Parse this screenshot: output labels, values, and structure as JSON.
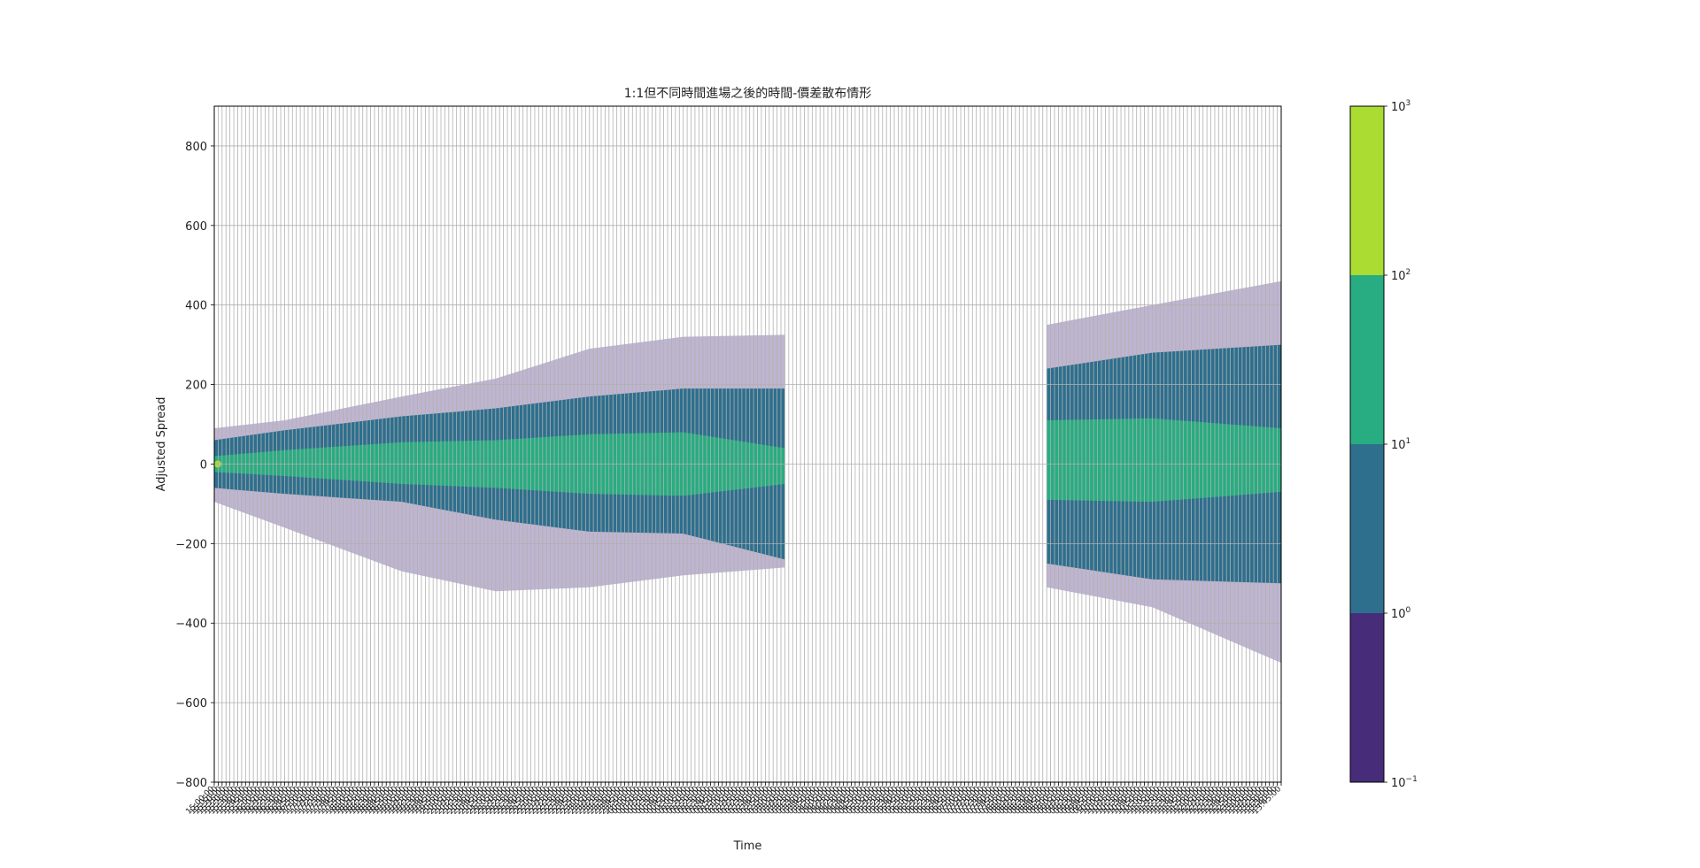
{
  "chart_data": {
    "type": "heatmap",
    "title": "1:1但不同時間進場之後的時間-價差散布情形",
    "xlabel": "Time",
    "ylabel": "Adjusted Spread",
    "ylim": [
      -800,
      900
    ],
    "yticks": [
      -800,
      -600,
      -400,
      -200,
      0,
      200,
      400,
      600,
      800
    ],
    "grid": true,
    "colorscale": "log",
    "colorbar": {
      "levels": [
        0.1,
        1,
        10,
        100,
        1000
      ],
      "tick_labels": [
        "10^-1",
        "10^0",
        "10^1",
        "10^2",
        "10^3"
      ],
      "band_colors": [
        "#472c7a",
        "#2e6f8e",
        "#27ad81",
        "#aadc32"
      ]
    },
    "time_labels": [
      "15:00:00",
      "15:05:00",
      "15:10:00",
      "15:15:00",
      "15:20:00",
      "15:25:00",
      "15:30:00",
      "15:35:00",
      "15:40:00",
      "15:45:00",
      "15:50:00",
      "15:55:00",
      "16:00:00",
      "16:05:00",
      "16:10:00",
      "16:15:00",
      "16:20:00",
      "16:25:00",
      "16:30:00",
      "16:35:00",
      "16:40:00",
      "16:45:00",
      "16:50:00",
      "16:55:00",
      "17:00:00",
      "17:05:00",
      "17:10:00",
      "17:15:00",
      "17:20:00",
      "17:25:00",
      "17:30:00",
      "17:35:00",
      "17:40:00",
      "17:45:00",
      "17:50:00",
      "17:55:00",
      "18:00:00",
      "18:05:00",
      "18:10:00",
      "18:15:00",
      "18:20:00",
      "18:25:00",
      "18:30:00",
      "18:35:00",
      "18:40:00",
      "18:45:00",
      "18:50:00",
      "18:55:00",
      "19:00:00",
      "19:05:00",
      "19:10:00",
      "19:15:00",
      "19:20:00",
      "19:25:00",
      "19:30:00",
      "19:35:00",
      "19:40:00",
      "19:45:00",
      "19:50:00",
      "19:55:00",
      "20:00:00",
      "20:05:00",
      "20:10:00",
      "20:15:00",
      "20:20:00",
      "20:25:00",
      "20:30:00",
      "20:35:00",
      "20:40:00",
      "20:45:00",
      "20:50:00",
      "20:55:00",
      "21:00:00",
      "21:05:00",
      "21:10:00",
      "21:15:00",
      "21:20:00",
      "21:25:00",
      "21:30:00",
      "21:35:00",
      "21:40:00",
      "21:45:00",
      "21:50:00",
      "21:55:00",
      "22:00:00",
      "22:05:00",
      "22:10:00",
      "22:15:00",
      "22:20:00",
      "22:25:00",
      "22:30:00",
      "22:35:00",
      "22:40:00",
      "22:45:00",
      "22:50:00",
      "22:55:00",
      "23:00:00",
      "23:05:00",
      "23:10:00",
      "23:15:00",
      "23:20:00",
      "23:25:00",
      "23:30:00",
      "23:35:00",
      "23:40:00",
      "23:45:00",
      "23:50:00",
      "23:55:00",
      "00:00:00",
      "00:05:00",
      "00:10:00",
      "00:15:00",
      "00:20:00",
      "00:25:00",
      "00:30:00",
      "00:35:00",
      "00:40:00",
      "00:45:00",
      "00:50:00",
      "00:55:00",
      "01:00:00",
      "01:05:00",
      "01:10:00",
      "01:15:00",
      "01:20:00",
      "01:25:00",
      "01:30:00",
      "01:35:00",
      "01:40:00",
      "01:45:00",
      "01:50:00",
      "01:55:00",
      "02:00:00",
      "02:05:00",
      "02:10:00",
      "02:15:00",
      "02:20:00",
      "02:25:00",
      "02:30:00",
      "02:35:00",
      "02:40:00",
      "02:45:00",
      "02:50:00",
      "02:55:00",
      "03:00:00",
      "03:05:00",
      "03:10:00",
      "03:15:00",
      "03:20:00",
      "03:25:00",
      "03:30:00",
      "03:35:00",
      "03:40:00",
      "03:45:00",
      "03:50:00",
      "03:55:00",
      "04:00:00",
      "04:05:00",
      "04:10:00",
      "04:15:00",
      "04:20:00",
      "04:25:00",
      "04:30:00",
      "04:35:00",
      "04:40:00",
      "04:45:00",
      "04:50:00",
      "04:55:00",
      "05:00:00",
      "05:05:00",
      "05:10:00",
      "05:15:00",
      "05:20:00",
      "05:25:00",
      "05:30:00",
      "05:35:00",
      "05:40:00",
      "05:45:00",
      "05:50:00",
      "05:55:00",
      "06:00:00",
      "06:05:00",
      "06:10:00",
      "06:15:00",
      "06:20:00",
      "06:25:00",
      "06:30:00",
      "06:35:00",
      "06:40:00",
      "06:45:00",
      "06:50:00",
      "06:55:00",
      "07:00:00",
      "07:05:00",
      "07:10:00",
      "07:15:00",
      "07:20:00",
      "07:25:00",
      "07:30:00",
      "07:35:00",
      "07:40:00",
      "07:45:00",
      "07:50:00",
      "07:55:00",
      "08:00:00",
      "08:05:00",
      "08:10:00",
      "08:15:00",
      "08:20:00",
      "08:25:00",
      "08:30:00",
      "08:35:00",
      "08:40:00",
      "08:45:00",
      "08:50:00",
      "08:55:00",
      "09:00:00",
      "09:05:00",
      "09:10:00",
      "09:15:00",
      "09:20:00",
      "09:25:00",
      "09:30:00",
      "09:35:00",
      "09:40:00",
      "09:45:00",
      "09:50:00",
      "09:55:00",
      "10:00:00",
      "10:05:00",
      "10:10:00",
      "10:15:00",
      "10:20:00",
      "10:25:00",
      "10:30:00",
      "10:35:00",
      "10:40:00",
      "10:45:00",
      "10:50:00",
      "10:55:00",
      "11:00:00",
      "11:05:00",
      "11:10:00",
      "11:15:00",
      "11:20:00",
      "11:25:00",
      "11:30:00",
      "11:35:00",
      "11:40:00",
      "11:45:00",
      "11:50:00",
      "11:55:00",
      "12:00:00",
      "12:05:00",
      "12:10:00",
      "12:15:00",
      "12:20:00",
      "12:25:00",
      "12:30:00",
      "12:35:00",
      "12:40:00",
      "12:45:00",
      "12:50:00",
      "12:55:00",
      "13:00:00",
      "13:05:00",
      "13:10:00",
      "13:15:00",
      "13:20:00",
      "13:25:00",
      "13:30:00",
      "13:35:00",
      "13:40:00",
      "13:45:00"
    ],
    "time_start": "15:00:00",
    "time_end": "13:45:00",
    "no_data_range": [
      "03:15:00",
      "08:40:00"
    ],
    "spread_envelope": {
      "times": [
        "15:00:00",
        "16:30:00",
        "19:00:00",
        "21:00:00",
        "23:00:00",
        "01:00:00",
        "03:10:00",
        "08:45:00",
        "11:00:00",
        "13:45:00"
      ],
      "inner_high": [
        20,
        35,
        55,
        60,
        75,
        80,
        40,
        110,
        115,
        90
      ],
      "inner_low": [
        -20,
        -30,
        -50,
        -60,
        -75,
        -80,
        -50,
        -90,
        -95,
        -70
      ],
      "outer_high": [
        60,
        85,
        120,
        140,
        170,
        190,
        190,
        240,
        280,
        300
      ],
      "outer_low": [
        -60,
        -75,
        -95,
        -140,
        -170,
        -175,
        -240,
        -250,
        -290,
        -300
      ],
      "outlier_high": [
        90,
        110,
        170,
        215,
        290,
        320,
        325,
        350,
        400,
        460
      ],
      "outlier_low": [
        -95,
        -160,
        -270,
        -320,
        -310,
        -280,
        -260,
        -310,
        -360,
        -500
      ]
    }
  }
}
